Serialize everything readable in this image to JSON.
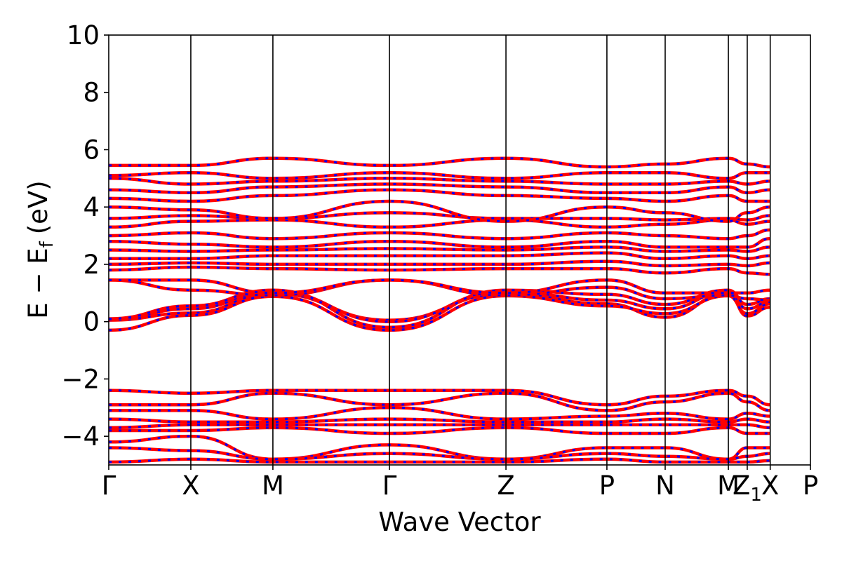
{
  "chart_data": {
    "type": "line",
    "title": "",
    "xlabel": "Wave Vector",
    "ylabel": {
      "main": "E − E",
      "sub": "f",
      "unit": "(eV)"
    },
    "ylim": [
      -5,
      10
    ],
    "yticks": [
      {
        "value": -4,
        "label": "−4"
      },
      {
        "value": -2,
        "label": "−2"
      },
      {
        "value": 0,
        "label": "0"
      },
      {
        "value": 2,
        "label": "2"
      },
      {
        "value": 4,
        "label": "4"
      },
      {
        "value": 6,
        "label": "6"
      },
      {
        "value": 8,
        "label": "8"
      },
      {
        "value": 10,
        "label": "10"
      }
    ],
    "xlim": [
      0,
      8.55
    ],
    "kpoints": [
      {
        "x": 0.0,
        "label": "Γ"
      },
      {
        "x": 1.0,
        "label": "X"
      },
      {
        "x": 2.0,
        "label": "M"
      },
      {
        "x": 3.42,
        "label": "Γ"
      },
      {
        "x": 4.84,
        "label": "Z"
      },
      {
        "x": 6.07,
        "label": "P"
      },
      {
        "x": 6.78,
        "label": "N"
      },
      {
        "x": 7.55,
        "label": "M"
      },
      {
        "x": 7.78,
        "label": "Z",
        "sub": "1"
      },
      {
        "x": 8.06,
        "label": "X"
      },
      {
        "x": 8.55,
        "label": "P"
      }
    ],
    "grid": false,
    "legend": "none",
    "style": {
      "line_color": "#ff0000",
      "dash_color": "#0000ff"
    },
    "series": [
      {
        "y": [
          0.05,
          0.3,
          0.98,
          0.05,
          0.98,
          0.62,
          0.15,
          0.98,
          0.2,
          0.5
        ]
      },
      {
        "y": [
          -0.3,
          0.22,
          0.88,
          -0.3,
          0.9,
          0.55,
          0.28,
          0.9,
          0.28,
          0.62
        ]
      },
      {
        "y": [
          0.08,
          0.45,
          1.05,
          0.0,
          1.05,
          0.75,
          0.45,
          1.05,
          0.45,
          0.7
        ]
      },
      {
        "y": [
          0.1,
          0.55,
          1.1,
          -0.2,
          1.1,
          0.95,
          0.6,
          1.1,
          0.6,
          0.8
        ]
      },
      {
        "y": [
          1.45,
          1.1,
          0.92,
          1.45,
          0.92,
          1.2,
          0.8,
          0.92,
          0.8,
          0.75
        ]
      },
      {
        "y": [
          1.45,
          1.45,
          1.0,
          1.45,
          1.0,
          1.45,
          1.0,
          1.0,
          1.0,
          1.1
        ]
      },
      {
        "y": [
          1.8,
          1.9,
          1.85,
          1.8,
          1.85,
          1.85,
          1.7,
          1.85,
          1.7,
          1.65
        ]
      },
      {
        "y": [
          2.0,
          2.05,
          2.0,
          2.0,
          2.0,
          2.1,
          1.95,
          2.0,
          1.95,
          2.05
        ]
      },
      {
        "y": [
          2.2,
          2.2,
          2.3,
          2.3,
          2.3,
          2.4,
          2.2,
          2.3,
          2.2,
          2.3
        ]
      },
      {
        "y": [
          2.5,
          2.45,
          2.5,
          2.55,
          2.5,
          2.6,
          2.45,
          2.5,
          2.45,
          2.6
        ]
      },
      {
        "y": [
          2.8,
          2.7,
          2.6,
          2.8,
          2.6,
          2.8,
          2.6,
          2.6,
          2.6,
          2.9
        ]
      },
      {
        "y": [
          3.0,
          3.1,
          2.9,
          3.1,
          2.9,
          3.1,
          3.0,
          2.9,
          3.0,
          3.2
        ]
      },
      {
        "y": [
          3.3,
          3.5,
          3.55,
          3.3,
          3.55,
          3.3,
          3.4,
          3.55,
          3.4,
          3.5
        ]
      },
      {
        "y": [
          3.6,
          3.7,
          3.6,
          3.8,
          3.6,
          3.6,
          3.55,
          3.6,
          3.55,
          3.7
        ]
      },
      {
        "y": [
          4.0,
          3.9,
          3.6,
          4.2,
          3.5,
          4.0,
          3.8,
          3.5,
          3.8,
          4.0
        ]
      },
      {
        "y": [
          4.3,
          4.2,
          4.4,
          4.6,
          4.4,
          4.3,
          4.2,
          4.4,
          4.2,
          4.2
        ]
      },
      {
        "y": [
          4.6,
          4.5,
          4.7,
          4.8,
          4.7,
          4.5,
          4.5,
          4.7,
          4.5,
          4.6
        ]
      },
      {
        "y": [
          5.0,
          4.8,
          4.9,
          5.0,
          4.9,
          4.8,
          4.8,
          4.9,
          4.8,
          4.9
        ]
      },
      {
        "y": [
          5.1,
          5.2,
          5.0,
          5.2,
          5.0,
          5.2,
          5.2,
          5.0,
          5.2,
          5.2
        ]
      },
      {
        "y": [
          5.45,
          5.45,
          5.7,
          5.45,
          5.7,
          5.4,
          5.5,
          5.7,
          5.5,
          5.4
        ]
      },
      {
        "y": [
          -2.4,
          -2.5,
          -2.4,
          -2.4,
          -2.4,
          -2.9,
          -2.6,
          -2.4,
          -2.6,
          -2.9
        ]
      },
      {
        "y": [
          -2.9,
          -2.9,
          -2.5,
          -2.9,
          -2.5,
          -3.1,
          -2.8,
          -2.5,
          -2.8,
          -3.1
        ]
      },
      {
        "y": [
          -3.1,
          -3.1,
          -3.4,
          -3.0,
          -3.4,
          -3.3,
          -3.2,
          -3.4,
          -3.2,
          -3.3
        ]
      },
      {
        "y": [
          -3.4,
          -3.5,
          -3.5,
          -3.4,
          -3.5,
          -3.5,
          -3.4,
          -3.5,
          -3.4,
          -3.5
        ]
      },
      {
        "y": [
          -3.7,
          -3.6,
          -3.6,
          -3.6,
          -3.6,
          -3.6,
          -3.6,
          -3.6,
          -3.6,
          -3.7
        ]
      },
      {
        "y": [
          -3.8,
          -3.8,
          -3.7,
          -3.9,
          -3.7,
          -3.9,
          -3.9,
          -3.7,
          -3.9,
          -3.9
        ]
      },
      {
        "y": [
          -4.2,
          -4.0,
          -4.8,
          -4.3,
          -4.8,
          -4.4,
          -4.4,
          -4.8,
          -4.4,
          -4.4
        ]
      },
      {
        "y": [
          -4.4,
          -4.5,
          -4.8,
          -4.6,
          -4.8,
          -4.6,
          -4.7,
          -4.8,
          -4.7,
          -4.6
        ]
      },
      {
        "y": [
          -4.9,
          -4.8,
          -4.9,
          -4.9,
          -4.9,
          -4.8,
          -4.9,
          -4.9,
          -4.9,
          -4.85
        ]
      }
    ]
  }
}
